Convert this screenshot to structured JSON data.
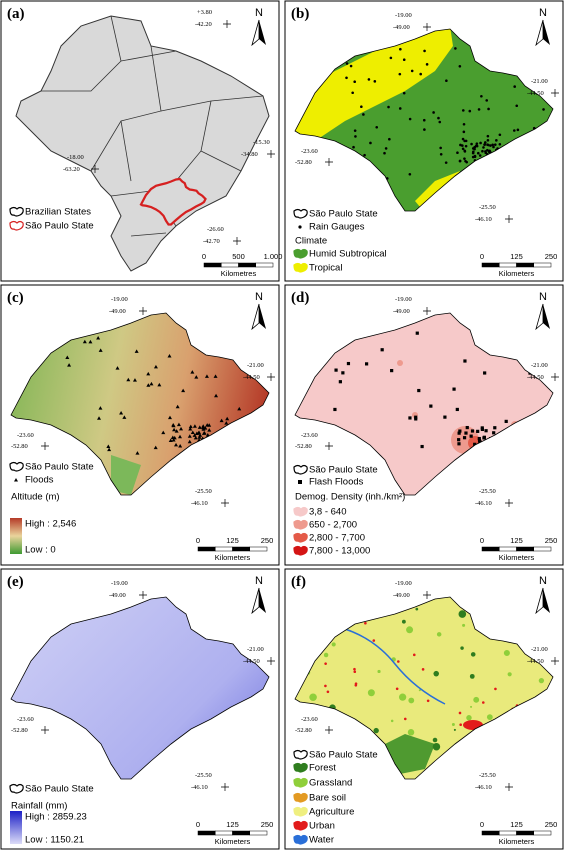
{
  "panels": [
    {
      "label": "(a)",
      "north": "N",
      "coords": [
        [
          "+3.80",
          "-42.20"
        ],
        [
          "-15.30",
          "-34.80"
        ],
        [
          "-18.00",
          "-63.20"
        ],
        [
          "-26.60",
          "-42.70"
        ]
      ],
      "legend": [
        "Brazilian States",
        "São Paulo State"
      ],
      "scale": {
        "ticks": [
          "0",
          "500",
          "1.000"
        ],
        "unit": "Kilometres"
      }
    },
    {
      "label": "(b)",
      "north": "N",
      "coords": [
        [
          "-19.00",
          "-49.00"
        ],
        [
          "-21.00",
          "-44.50"
        ],
        [
          "-23.60",
          "-52.80"
        ],
        [
          "-25.50",
          "-46.10"
        ]
      ],
      "legend": [
        "São Paulo State",
        "Rain Gauges",
        "Climate",
        "Humid Subtropical",
        "Tropical"
      ],
      "scale": {
        "ticks": [
          "0",
          "125",
          "250"
        ],
        "unit": "Kilometers"
      }
    },
    {
      "label": "(c)",
      "north": "N",
      "coords": [
        [
          "-19.00",
          "-49.00"
        ],
        [
          "-21.00",
          "-44.50"
        ],
        [
          "-23.60",
          "-52.80"
        ],
        [
          "-25.50",
          "-46.10"
        ]
      ],
      "legend": [
        "São Paulo State",
        "Floods",
        "Altitude (m)",
        "High : 2,546",
        "Low : 0"
      ],
      "scale": {
        "ticks": [
          "0",
          "125",
          "250"
        ],
        "unit": "Kilometers"
      }
    },
    {
      "label": "(d)",
      "north": "N",
      "coords": [
        [
          "-19.00",
          "-49.00"
        ],
        [
          "-21.00",
          "-44.50"
        ],
        [
          "-23.60",
          "-52.80"
        ],
        [
          "-25.50",
          "-46.10"
        ]
      ],
      "legend": [
        "São Paulo State",
        "Flash Floods",
        "Demog. Density (inh./km²)",
        "3,8 - 640",
        "650 - 2,700",
        "2,800 - 7,700",
        "7,800 - 13,000"
      ],
      "scale": {
        "ticks": [
          "0",
          "125",
          "250"
        ],
        "unit": "Kilometers"
      }
    },
    {
      "label": "(e)",
      "north": "N",
      "coords": [
        [
          "-19.00",
          "-49.00"
        ],
        [
          "-21.00",
          "-44.50"
        ],
        [
          "-23.60",
          "-52.80"
        ],
        [
          "-25.50",
          "-46.10"
        ]
      ],
      "legend": [
        "São Paulo State",
        "Rainfall (mm)",
        "High : 2859.23",
        "Low : 1150.21"
      ],
      "scale": {
        "ticks": [
          "0",
          "125",
          "250"
        ],
        "unit": "Kilometers"
      }
    },
    {
      "label": "(f)",
      "north": "N",
      "coords": [
        [
          "-19.00",
          "-49.00"
        ],
        [
          "-21.00",
          "-44.50"
        ],
        [
          "-23.60",
          "-52.80"
        ],
        [
          "-25.50",
          "-46.10"
        ]
      ],
      "legend": [
        "São Paulo State",
        "Forest",
        "Grassland",
        "Bare soil",
        "Agriculture",
        "Urban",
        "Water"
      ],
      "scale": {
        "ticks": [
          "0",
          "125",
          "250"
        ],
        "unit": "Kilometers"
      }
    }
  ]
}
